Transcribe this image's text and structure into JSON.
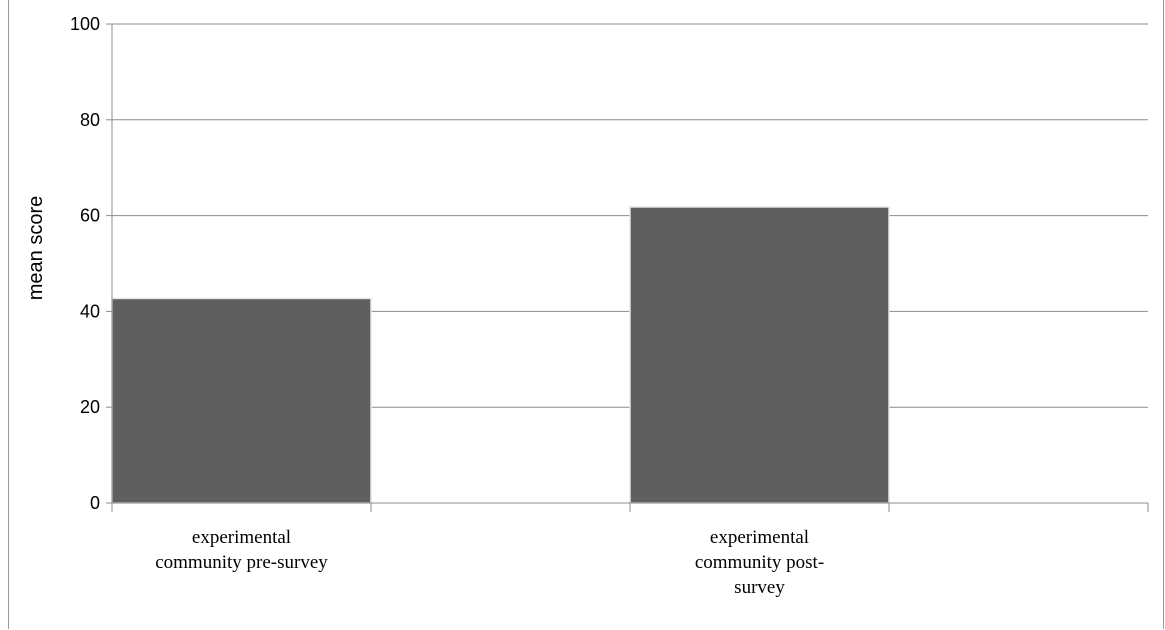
{
  "chart_data": {
    "type": "bar",
    "title": "",
    "xlabel": "",
    "ylabel": "mean score",
    "ylim": [
      0,
      100
    ],
    "yticks": [
      "0",
      "20",
      "40",
      "60",
      "80",
      "100"
    ],
    "categories": [
      [
        "experimental",
        "community pre-survey"
      ],
      [
        "experimental",
        "community  post-",
        "survey"
      ]
    ],
    "values": [
      42.7,
      61.8
    ],
    "bar_color": "#5f5f5f",
    "grid": true,
    "legend": "none"
  }
}
